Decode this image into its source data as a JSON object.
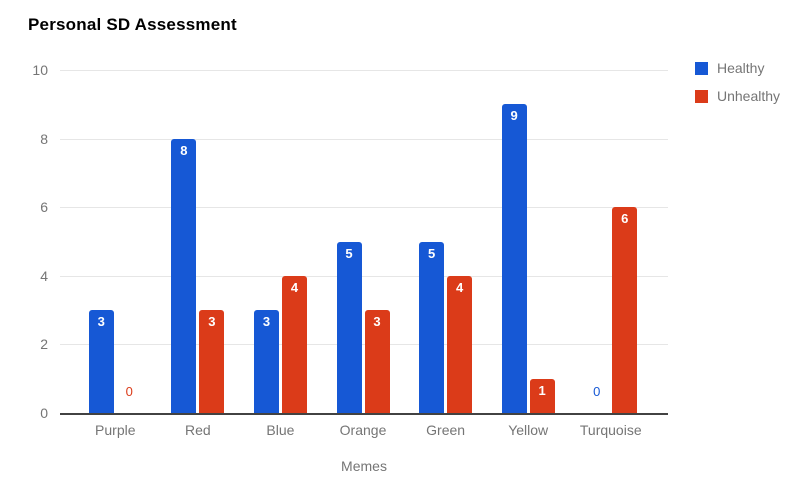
{
  "title": "Personal SD Assessment",
  "chart_data": {
    "type": "bar",
    "title": "Personal SD Assessment",
    "categories": [
      "Purple",
      "Red",
      "Blue",
      "Orange",
      "Green",
      "Yellow",
      "Turquoise"
    ],
    "series": [
      {
        "name": "Healthy",
        "color": "#1658d5",
        "values": [
          3,
          8,
          3,
          5,
          5,
          9,
          0
        ]
      },
      {
        "name": "Unhealthy",
        "color": "#db3b19",
        "values": [
          0,
          3,
          4,
          3,
          4,
          1,
          6
        ]
      }
    ],
    "xlabel": "Memes",
    "ylabel": "",
    "ylim": [
      0,
      10
    ],
    "y_ticks": [
      10,
      8,
      6,
      4,
      2,
      0
    ],
    "grid": true,
    "legend_position": "top-right",
    "bar_value_labels": true,
    "colors": {
      "axis_line": "#424242",
      "gridline": "#e6e6e6",
      "tick_text": "#757575",
      "title_text": "#000000",
      "bar_label_text": "#ffffff"
    }
  }
}
